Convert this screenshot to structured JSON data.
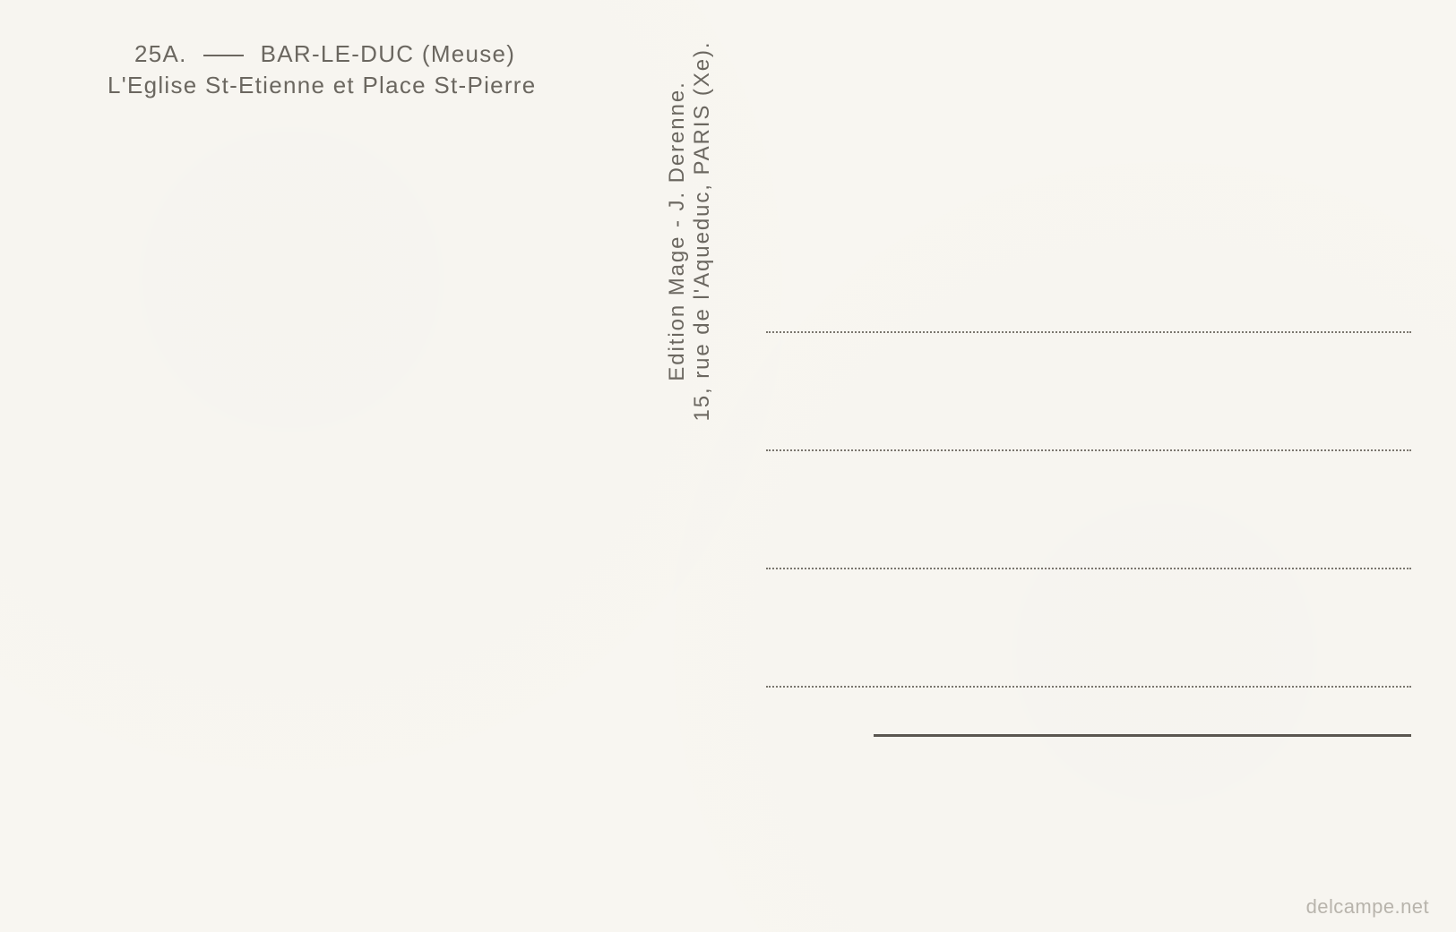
{
  "header": {
    "ref": "25A.",
    "city": "BAR-LE-DUC",
    "region": "(Meuse)",
    "subtitle": "L'Eglise St-Etienne et Place St-Pierre"
  },
  "publisher": {
    "line1": "Edition Mage - J. Derenne.",
    "line2": "15, rue de l'Aqueduc, PARIS (Xe)."
  },
  "watermark": "delcampe.net",
  "style": {
    "background_color": "#f8f6f1",
    "text_color": "#6b6760",
    "line_color": "#7a766e",
    "solid_line_color": "#5a5650",
    "watermark_color": "#b8b4ac",
    "header_fontsize": 26,
    "publisher_fontsize": 24,
    "watermark_fontsize": 22,
    "letter_spacing": "0.08em",
    "font_family": "Futura, Century Gothic, sans-serif",
    "address_line_count": 4,
    "address_line_spacing": 130,
    "dotted_line_width": 720,
    "solid_line_width": 600
  }
}
